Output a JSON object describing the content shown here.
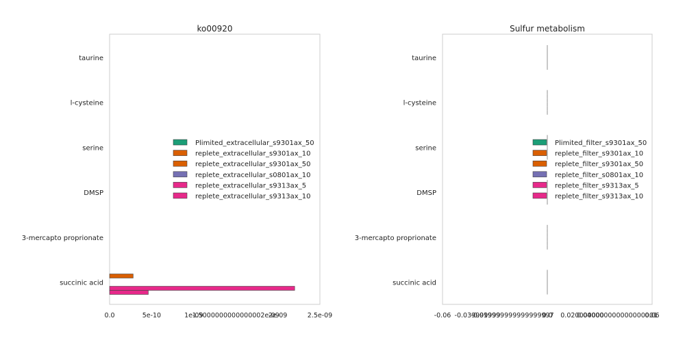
{
  "chart_data": [
    {
      "type": "bar",
      "orientation": "horizontal",
      "title": "ko00920",
      "categories": [
        "taurine",
        "l-cysteine",
        "serine",
        "DMSP",
        "3-mercapto proprionate",
        "succinic acid"
      ],
      "xlim": [
        0,
        2.5e-09
      ],
      "x_ticks": [
        {
          "value": 0,
          "label": "0.0"
        },
        {
          "value": 5e-10,
          "label": "5e-10"
        },
        {
          "value": 1e-09,
          "label": "1e-09"
        },
        {
          "value": 1.5e-09,
          "label": "1.5000000000000002e-09"
        },
        {
          "value": 2e-09,
          "label": "2e-09"
        },
        {
          "value": 2.5e-09,
          "label": "2.5e-09"
        }
      ],
      "grid": false,
      "legend_position": "center-right",
      "series": [
        {
          "name": "Plimited_extracellular_s9301ax_50",
          "color": "#1b9e77",
          "values": [
            0,
            0,
            0,
            0,
            0,
            0
          ]
        },
        {
          "name": "replete_extracellular_s9301ax_10",
          "color": "#d95f02",
          "values": [
            0,
            0,
            0,
            0,
            0,
            2.8e-10
          ]
        },
        {
          "name": "replete_extracellular_s9301ax_50",
          "color": "#d95f02",
          "values": [
            0,
            0,
            0,
            0,
            0,
            0
          ]
        },
        {
          "name": "replete_extracellular_s0801ax_10",
          "color": "#7570b3",
          "values": [
            0,
            0,
            0,
            0,
            0,
            0
          ]
        },
        {
          "name": "replete_extracellular_s9313ax_5",
          "color": "#e7298a",
          "values": [
            0,
            0,
            0,
            0,
            0,
            2.2e-09
          ]
        },
        {
          "name": "replete_extracellular_s9313ax_10",
          "color": "#e7298a",
          "values": [
            0,
            0,
            0,
            0,
            0,
            4.6e-10
          ]
        }
      ]
    },
    {
      "type": "bar",
      "orientation": "horizontal",
      "title": "Sulfur metabolism",
      "categories": [
        "taurine",
        "l-cysteine",
        "serine",
        "DMSP",
        "3-mercapto proprionate",
        "succinic acid"
      ],
      "xlim": [
        -0.06,
        0.06
      ],
      "x_ticks": [
        {
          "value": -0.06,
          "label": "-0.06"
        },
        {
          "value": -0.04,
          "label": "-0.039999999"
        },
        {
          "value": -0.02,
          "label": "-0.019999999999999997"
        },
        {
          "value": 0.0,
          "label": "0.0"
        },
        {
          "value": 0.02,
          "label": "0.020000000"
        },
        {
          "value": 0.04,
          "label": "0.040000000000000001"
        },
        {
          "value": 0.06,
          "label": "0.06"
        }
      ],
      "grid": false,
      "legend_position": "center-right",
      "series": [
        {
          "name": "Plimited_filter_s9301ax_50",
          "color": "#1b9e77",
          "values": [
            0,
            0,
            0,
            0,
            0,
            0
          ]
        },
        {
          "name": "replete_filter_s9301ax_10",
          "color": "#d95f02",
          "values": [
            0,
            0,
            0,
            0,
            0,
            0
          ]
        },
        {
          "name": "replete_filter_s9301ax_50",
          "color": "#d95f02",
          "values": [
            0,
            0,
            0,
            0,
            0,
            0
          ]
        },
        {
          "name": "replete_filter_s0801ax_10",
          "color": "#7570b3",
          "values": [
            0,
            0,
            0,
            0,
            0,
            0
          ]
        },
        {
          "name": "replete_filter_s9313ax_5",
          "color": "#e7298a",
          "values": [
            0,
            0,
            0,
            0,
            0,
            0
          ]
        },
        {
          "name": "replete_filter_s9313ax_10",
          "color": "#e7298a",
          "values": [
            0,
            0,
            0,
            0,
            0,
            0
          ]
        }
      ]
    }
  ]
}
